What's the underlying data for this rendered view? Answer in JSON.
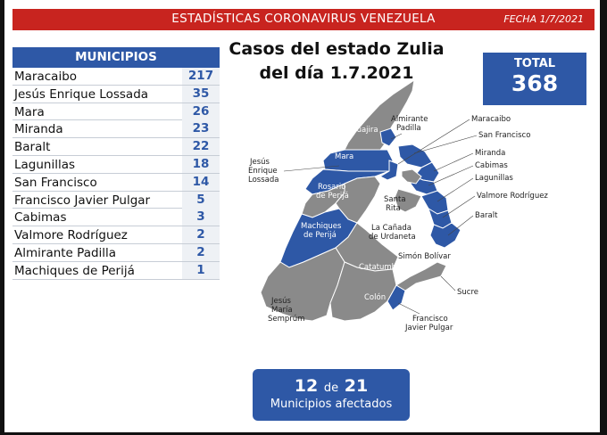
{
  "header": {
    "title": "ESTADÍSTICAS CORONAVIRUS VENEZUELA",
    "date": "FECHA 1/7/2021"
  },
  "table": {
    "header": "MUNICIPIOS",
    "rows": [
      {
        "name": "Maracaibo",
        "value": "217"
      },
      {
        "name": "Jesús Enrique Lossada",
        "value": "35"
      },
      {
        "name": "Mara",
        "value": "26"
      },
      {
        "name": "Miranda",
        "value": "23"
      },
      {
        "name": "Baralt",
        "value": "22"
      },
      {
        "name": "Lagunillas",
        "value": "18"
      },
      {
        "name": "San Francisco",
        "value": "14"
      },
      {
        "name": "Francisco Javier Pulgar",
        "value": "5"
      },
      {
        "name": "Cabimas",
        "value": "3"
      },
      {
        "name": "Valmore Rodríguez",
        "value": "2"
      },
      {
        "name": "Almirante Padilla",
        "value": "2"
      },
      {
        "name": "Machiques de Perijá",
        "value": "1"
      }
    ]
  },
  "map_title": {
    "line1": "Casos del estado Zulia",
    "line2": "del día 1.7.2021"
  },
  "total": {
    "label": "TOTAL",
    "value": "368"
  },
  "map": {
    "affected_color": "#2e58a6",
    "unaffected_color": "#8a8a8a",
    "labels": {
      "guajira": "Guajira",
      "mara": "Mara",
      "rosario1": "Rosario",
      "rosario2": "de Perijá",
      "machiques1": "Machiques",
      "machiques2": "de Perijá",
      "catatumbo": "Catatumbo",
      "colon": "Colón",
      "almirante1": "Almirante",
      "almirante2": "Padilla",
      "jel1": "Jesús",
      "jel2": "Enrique",
      "jel3": "Lossada",
      "santarita1": "Santa",
      "santarita2": "Rita",
      "canada1": "La Cañada",
      "canada2": "de Urdaneta",
      "simon": "Simón Bolívar",
      "jms1": "Jesús",
      "jms2": "María",
      "jms3": "Semprúm",
      "fjp1": "Francisco",
      "fjp2": "Javier Pulgar",
      "sucre": "Sucre",
      "maracaibo": "Maracaibo",
      "sanfrancisco": "San Francisco",
      "miranda": "Miranda",
      "cabimas": "Cabimas",
      "lagunillas": "Lagunillas",
      "valmore": "Valmore Rodríguez",
      "baralt": "Baralt"
    }
  },
  "afectados": {
    "count": "12",
    "de": "de",
    "total": "21",
    "label": "Municipios afectados"
  }
}
